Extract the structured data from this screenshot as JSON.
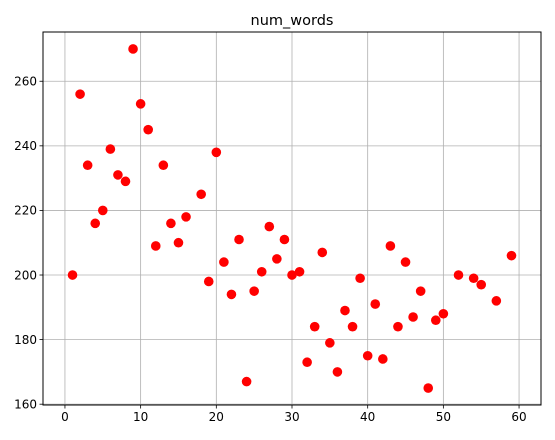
{
  "chart_data": {
    "type": "scatter",
    "title": "num_words",
    "xlabel": "",
    "ylabel": "",
    "xlim": [
      -2.9,
      62.9
    ],
    "ylim": [
      159.75,
      275.25
    ],
    "x_ticks": [
      0,
      10,
      20,
      30,
      40,
      50,
      60
    ],
    "y_ticks": [
      160,
      180,
      200,
      220,
      240,
      260
    ],
    "x_tick_labels": [
      "0",
      "10",
      "20",
      "30",
      "40",
      "50",
      "60"
    ],
    "y_tick_labels": [
      "160",
      "180",
      "200",
      "220",
      "240",
      "260"
    ],
    "grid": true,
    "legend": "none",
    "marker_color": "#ff0000",
    "series": [
      {
        "x": [
          1,
          2,
          3,
          4,
          5,
          6,
          7,
          8,
          9,
          10,
          11,
          12,
          13,
          14,
          15,
          16,
          18,
          19,
          20,
          21,
          22,
          23,
          24,
          25,
          26,
          27,
          28,
          29,
          30,
          31,
          32,
          33,
          34,
          35,
          36,
          37,
          38,
          39,
          40,
          41,
          42,
          43,
          44,
          45,
          46,
          47,
          48,
          49,
          50,
          52,
          54,
          55,
          57,
          59
        ],
        "y": [
          200,
          256,
          234,
          216,
          220,
          239,
          231,
          229,
          270,
          253,
          245,
          209,
          234,
          216,
          210,
          218,
          225,
          198,
          238,
          204,
          194,
          211,
          167,
          195,
          201,
          215,
          205,
          211,
          200,
          201,
          173,
          184,
          207,
          179,
          170,
          189,
          184,
          199,
          175,
          191,
          174,
          209,
          184,
          204,
          187,
          195,
          165,
          186,
          188,
          200,
          199,
          197,
          192,
          206
        ]
      }
    ]
  }
}
